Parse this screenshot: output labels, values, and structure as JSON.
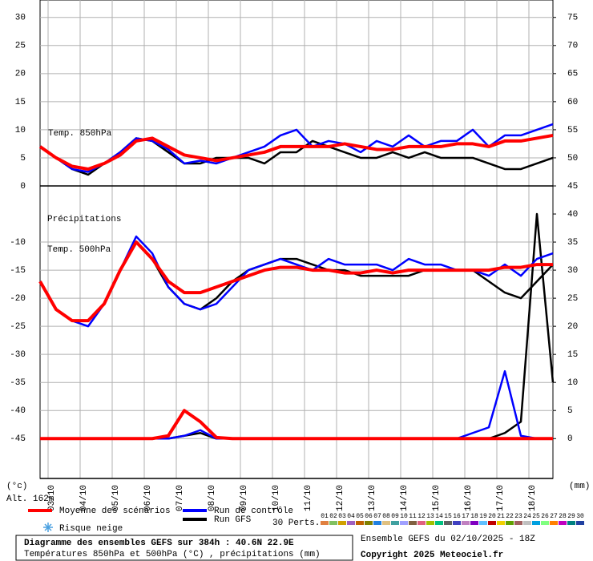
{
  "chart_data": {
    "type": "line",
    "x": [
      0,
      12,
      24,
      36,
      48,
      60,
      72,
      84,
      96,
      108,
      120,
      132,
      144,
      156,
      168,
      180,
      192,
      204,
      216,
      228,
      240,
      252,
      264,
      276,
      288,
      300,
      312,
      324,
      336,
      348,
      360,
      372,
      384
    ],
    "xlim": [
      0,
      384
    ],
    "xticks": [
      {
        "value": 6,
        "label": "03/10"
      },
      {
        "value": 30,
        "label": "04/10"
      },
      {
        "value": 54,
        "label": "05/10"
      },
      {
        "value": 78,
        "label": "06/10"
      },
      {
        "value": 102,
        "label": "07/10"
      },
      {
        "value": 126,
        "label": "08/10"
      },
      {
        "value": 150,
        "label": "09/10"
      },
      {
        "value": 174,
        "label": "10/10"
      },
      {
        "value": 198,
        "label": "11/10"
      },
      {
        "value": 222,
        "label": "12/10"
      },
      {
        "value": 246,
        "label": "13/10"
      },
      {
        "value": 270,
        "label": "14/10"
      },
      {
        "value": 294,
        "label": "15/10"
      },
      {
        "value": 318,
        "label": "16/10"
      },
      {
        "value": 342,
        "label": "17/10"
      },
      {
        "value": 366,
        "label": "18/10"
      }
    ],
    "grid": true,
    "y_unit": "(°c)",
    "y2_unit": "(mm)",
    "altitude": "Alt. 162m",
    "panels": [
      {
        "ylim": [
          0,
          33.1
        ],
        "yticks": [
          0,
          5,
          10,
          15,
          20,
          25,
          30
        ],
        "y2lim": [
          45,
          78.1
        ],
        "y2ticks": [
          45,
          50,
          55,
          60,
          65,
          70,
          75
        ],
        "annotations": [
          "Temp. 850hPa"
        ],
        "series": [
          {
            "color": "#000000",
            "width": 2.5,
            "values": [
              7,
              5,
              3,
              2,
              4,
              6,
              8.5,
              8,
              6,
              4,
              4,
              5,
              5,
              5,
              4,
              6,
              6,
              8,
              7,
              6,
              5,
              5,
              6,
              5,
              6,
              5,
              5,
              5,
              4,
              3,
              3,
              4,
              5
            ]
          },
          {
            "color": "#0000ff",
            "width": 2.5,
            "values": [
              7,
              5,
              3,
              2.5,
              4,
              6,
              8.5,
              8,
              6.5,
              4,
              4.5,
              4,
              5,
              6,
              7,
              9,
              10,
              7,
              8,
              7.5,
              6,
              8,
              7,
              9,
              7,
              8,
              8,
              10,
              7,
              9,
              9,
              10,
              11
            ]
          },
          {
            "color": "#ff0000",
            "width": 4,
            "values": [
              7,
              5,
              3.5,
              3,
              4,
              5.5,
              8,
              8.5,
              7,
              5.5,
              5,
              4.5,
              5,
              5.5,
              6,
              7,
              7,
              7,
              7,
              7.5,
              7,
              6.5,
              6.5,
              7,
              7,
              7,
              7.5,
              7.5,
              7,
              8,
              8,
              8.5,
              9
            ]
          }
        ]
      },
      {
        "ylim": [
          -52.1,
          0
        ],
        "yticks": [
          -10,
          -15,
          -20,
          -25,
          -30,
          -35,
          -40,
          -45
        ],
        "y2lim": [
          -7.1,
          45
        ],
        "y2ticks": [
          0,
          5,
          10,
          15,
          20,
          25,
          30,
          35,
          40
        ],
        "annotations": [
          "Précipitations",
          "Temp. 500hPa"
        ],
        "series": [
          {
            "color": "#000000",
            "width": 2.5,
            "axis": "y2",
            "values": [
              0,
              0,
              0,
              0,
              0,
              0,
              0,
              0,
              0,
              0.5,
              1,
              0,
              0,
              0,
              0,
              0,
              0,
              0,
              0,
              0,
              0,
              0,
              0,
              0,
              0,
              0,
              0,
              0,
              0,
              1,
              3,
              40,
              10
            ]
          },
          {
            "color": "#0000ff",
            "width": 2.5,
            "axis": "y2",
            "values": [
              0,
              0,
              0,
              0,
              0,
              0,
              0,
              0,
              0,
              0.5,
              1.5,
              0,
              0,
              0,
              0,
              0,
              0,
              0,
              0,
              0,
              0,
              0,
              0,
              0,
              0,
              0,
              0,
              1,
              2,
              12,
              0.5,
              0,
              0
            ]
          },
          {
            "color": "#ff0000",
            "width": 4,
            "axis": "y2",
            "values": [
              0,
              0,
              0,
              0,
              0,
              0,
              0,
              0,
              0.5,
              5,
              3,
              0.2,
              0,
              0,
              0,
              0,
              0,
              0,
              0,
              0,
              0,
              0,
              0,
              0,
              0,
              0,
              0,
              0,
              0,
              0,
              0,
              0,
              0
            ]
          },
          {
            "color": "#000000",
            "width": 2.5,
            "values": [
              -17,
              -22,
              -24,
              -24,
              -21,
              -15,
              -10,
              -13,
              -18,
              -21,
              -22,
              -20,
              -17,
              -15,
              -14,
              -13,
              -13,
              -14,
              -15,
              -15,
              -16,
              -16,
              -16,
              -16,
              -15,
              -15,
              -15,
              -15,
              -17,
              -19,
              -20,
              -17,
              -14
            ]
          },
          {
            "color": "#0000ff",
            "width": 2.5,
            "values": [
              -17,
              -22,
              -24,
              -25,
              -21,
              -15,
              -9,
              -12,
              -18,
              -21,
              -22,
              -21,
              -18,
              -15,
              -14,
              -13,
              -14,
              -15,
              -13,
              -14,
              -14,
              -14,
              -15,
              -13,
              -14,
              -14,
              -15,
              -15,
              -16,
              -14,
              -16,
              -13,
              -12
            ]
          },
          {
            "color": "#ff0000",
            "width": 4,
            "values": [
              -17,
              -22,
              -24,
              -24,
              -21,
              -15,
              -10,
              -13,
              -17,
              -19,
              -19,
              -18,
              -17,
              -16,
              -15,
              -14.5,
              -14.5,
              -15,
              -15,
              -15.5,
              -15.5,
              -15,
              -15.5,
              -15,
              -15,
              -15,
              -15,
              -15,
              -15,
              -14.5,
              -14.5,
              -14,
              -14
            ]
          }
        ]
      }
    ],
    "legend": [
      {
        "name": "Moyenne des scénarios",
        "color": "#ff0000"
      },
      {
        "name": "Run de contrôle",
        "color": "#0000ff"
      },
      {
        "name": "Run GFS",
        "color": "#000000"
      }
    ],
    "snow": "Risque neige",
    "perturbations": {
      "label": "30 Perts.",
      "items": [
        {
          "name": "01",
          "color": "#e08040"
        },
        {
          "name": "02",
          "color": "#80c060"
        },
        {
          "name": "03",
          "color": "#d0a000"
        },
        {
          "name": "04",
          "color": "#a060c0"
        },
        {
          "name": "05",
          "color": "#c06000"
        },
        {
          "name": "06",
          "color": "#808000"
        },
        {
          "name": "07",
          "color": "#2080e0"
        },
        {
          "name": "08",
          "color": "#e0c080"
        },
        {
          "name": "09",
          "color": "#40a0a0"
        },
        {
          "name": "10",
          "color": "#a0a0ff"
        },
        {
          "name": "11",
          "color": "#806040"
        },
        {
          "name": "12",
          "color": "#e06080"
        },
        {
          "name": "13",
          "color": "#a0c000"
        },
        {
          "name": "14",
          "color": "#00c080"
        },
        {
          "name": "15",
          "color": "#606060"
        },
        {
          "name": "16",
          "color": "#4040c0"
        },
        {
          "name": "17",
          "color": "#c080c0"
        },
        {
          "name": "18",
          "color": "#8000c0"
        },
        {
          "name": "19",
          "color": "#60c0ff"
        },
        {
          "name": "20",
          "color": "#c00000"
        },
        {
          "name": "21",
          "color": "#f0d000"
        },
        {
          "name": "22",
          "color": "#60a000"
        },
        {
          "name": "23",
          "color": "#a06060"
        },
        {
          "name": "24",
          "color": "#c0c0c0"
        },
        {
          "name": "25",
          "color": "#00a0e0"
        },
        {
          "name": "26",
          "color": "#80ff80"
        },
        {
          "name": "27",
          "color": "#ff8000"
        },
        {
          "name": "28",
          "color": "#c000c0"
        },
        {
          "name": "29",
          "color": "#008080"
        },
        {
          "name": "30",
          "color": "#2040a0"
        }
      ]
    }
  },
  "footer": {
    "title": "Diagramme des ensembles GEFS sur 384h : 40.6N 22.9E",
    "subtitle": "Températures 850hPa et 500hPa (°C) , précipitations (mm)",
    "run": "Ensemble GEFS du 02/10/2025 - 18Z",
    "copyright": "Copyright 2025 Meteociel.fr"
  }
}
